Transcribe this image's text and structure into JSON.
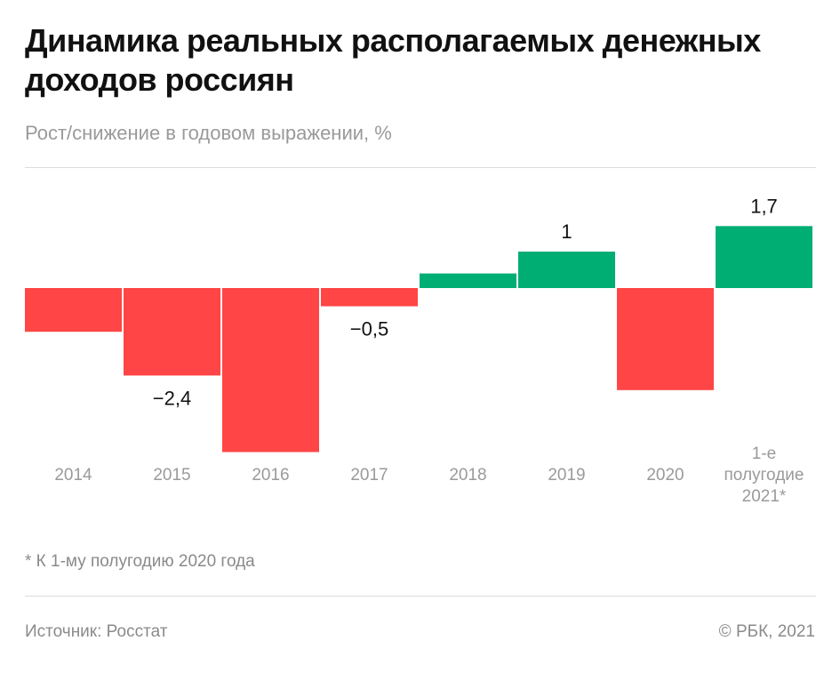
{
  "header": {
    "title": "Динамика реальных располагаемых денежных доходов россиян",
    "subtitle": "Рост/снижение в годовом выражении, %"
  },
  "footer": {
    "note": "* К 1-му полугодию 2020 года",
    "source": "Источник: Росстат",
    "copyright": "© РБК, 2021"
  },
  "colors": {
    "negative": "#ff4545",
    "positive": "#00ad72"
  },
  "chart_data": {
    "type": "bar",
    "categories": [
      "2014",
      "2015",
      "2016",
      "2017",
      "2018",
      "2019",
      "2020",
      "1-е полугодие 2021*"
    ],
    "category_lines": [
      [
        "2014"
      ],
      [
        "2015"
      ],
      [
        "2016"
      ],
      [
        "2017"
      ],
      [
        "2018"
      ],
      [
        "2019"
      ],
      [
        "2020"
      ],
      [
        "1-е",
        "полугодие",
        "2021*"
      ]
    ],
    "values": [
      -1.2,
      -2.4,
      -4.5,
      -0.5,
      0.4,
      1.0,
      -2.8,
      1.7
    ],
    "data_labels": [
      "",
      "−2,4",
      "",
      "−0,5",
      "",
      "1",
      "",
      "1,7"
    ],
    "title": "Динамика реальных располагаемых денежных доходов россиян",
    "ylabel": "Рост/снижение в годовом выражении, %",
    "ylim": [
      -4.5,
      1.7
    ],
    "grid": false,
    "legend": "none"
  }
}
